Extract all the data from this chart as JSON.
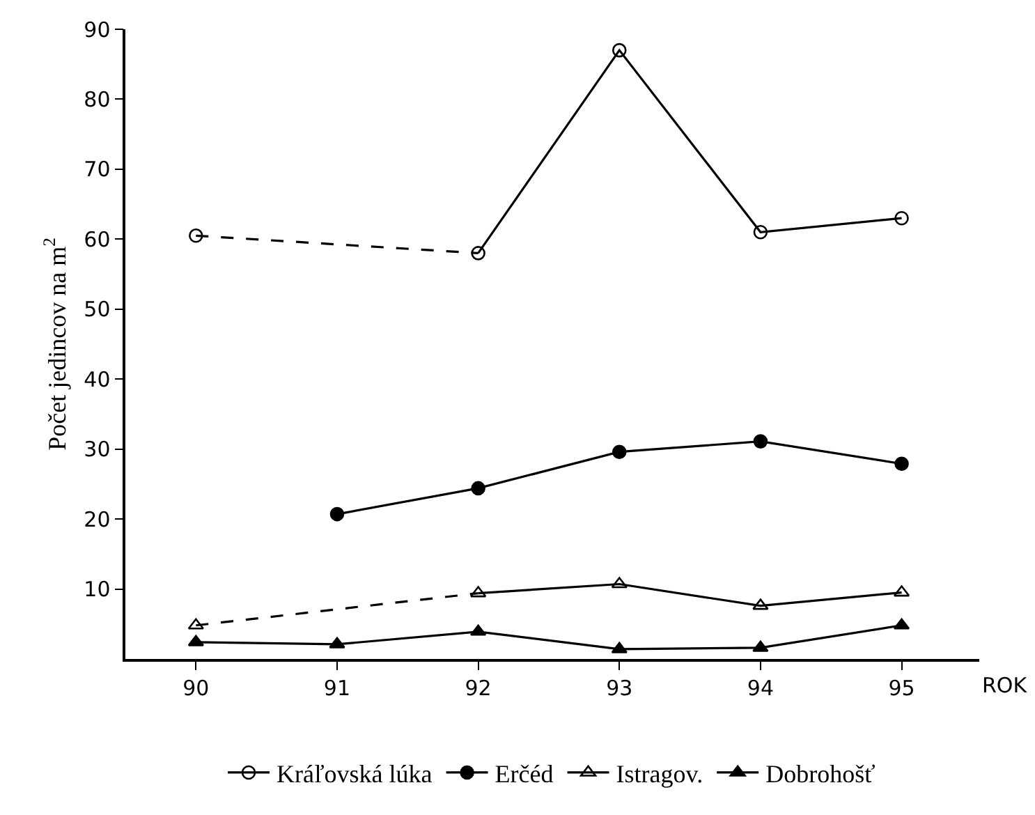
{
  "chart_data": {
    "type": "line",
    "ylabel": "Počet jedincov na m$^{2}$",
    "xlabel": "ROK",
    "x": [
      90,
      91,
      92,
      93,
      94,
      95
    ],
    "xlim": [
      89.5,
      95.55
    ],
    "xticks": [
      90,
      91,
      92,
      93,
      94,
      95
    ],
    "ylim": [
      0,
      90
    ],
    "yticks": [
      10,
      20,
      30,
      40,
      50,
      60,
      70,
      80,
      90
    ],
    "legend": "bottom",
    "line_style": "solid",
    "series": [
      {
        "name": "Kráľovská lúka",
        "color": "#000000",
        "marker": "circle-open",
        "values": [
          60.5,
          null,
          58,
          87,
          61,
          63
        ]
      },
      {
        "name": "Erčéd",
        "color": "#000000",
        "marker": "circle",
        "values": [
          null,
          20.7,
          24.4,
          29.6,
          31.1,
          27.9
        ]
      },
      {
        "name": "Istragov.",
        "color": "#000000",
        "marker": "triangle-open",
        "values": [
          4.8,
          null,
          9.4,
          10.7,
          7.6,
          9.5
        ]
      },
      {
        "name": "Dobrohošť",
        "color": "#000000",
        "marker": "triangle",
        "values": [
          2.4,
          2.1,
          3.9,
          1.4,
          1.6,
          4.8
        ]
      }
    ]
  }
}
